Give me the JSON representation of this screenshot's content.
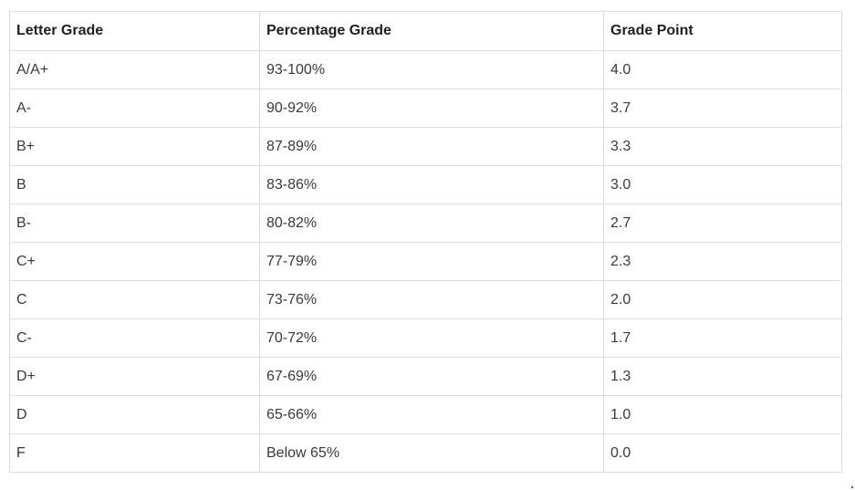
{
  "table": {
    "headers": [
      "Letter Grade",
      "Percentage Grade",
      "Grade Point"
    ],
    "rows": [
      [
        "A/A+",
        "93-100%",
        "4.0"
      ],
      [
        "A-",
        "90-92%",
        "3.7"
      ],
      [
        "B+",
        "87-89%",
        "3.3"
      ],
      [
        "B",
        "83-86%",
        "3.0"
      ],
      [
        "B-",
        "80-82%",
        "2.7"
      ],
      [
        "C+",
        "77-79%",
        "2.3"
      ],
      [
        "C",
        "73-76%",
        "2.0"
      ],
      [
        "C-",
        "70-72%",
        "1.7"
      ],
      [
        "D+",
        "67-69%",
        "1.3"
      ],
      [
        "D",
        "65-66%",
        "1.0"
      ],
      [
        "F",
        "Below 65%",
        "0.0"
      ]
    ]
  },
  "colors": {
    "border": "#dcdcdc",
    "header_text": "#1f1f1f",
    "cell_text": "#3a3a3a",
    "background": "#ffffff"
  }
}
